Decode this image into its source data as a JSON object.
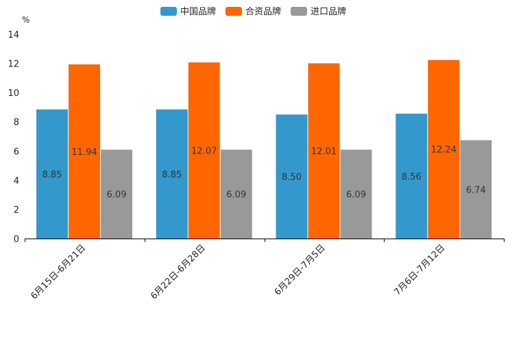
{
  "chart_data": {
    "type": "bar",
    "unit": "%",
    "ylim": [
      0,
      14
    ],
    "yticks": [
      0,
      2,
      4,
      6,
      8,
      10,
      12,
      14
    ],
    "categories": [
      "6月15日-6月21日",
      "6月22日-6月28日",
      "6月29日-7月5日",
      "7月6日-7月12日"
    ],
    "series": [
      {
        "name": "中国品牌",
        "color": "#3399CC",
        "values": [
          8.85,
          8.85,
          8.5,
          8.56
        ],
        "labels": [
          "8.85",
          "8.85",
          "8.50",
          "8.56"
        ]
      },
      {
        "name": "合资品牌",
        "color": "#FF6600",
        "values": [
          11.94,
          12.07,
          12.01,
          12.24
        ],
        "labels": [
          "11.94",
          "12.07",
          "12.01",
          "12.24"
        ]
      },
      {
        "name": "进口品牌",
        "color": "#999999",
        "values": [
          6.09,
          6.09,
          6.09,
          6.74
        ],
        "labels": [
          "6.09",
          "6.09",
          "6.09",
          "6.74"
        ]
      }
    ],
    "legend_position": "top-center"
  }
}
